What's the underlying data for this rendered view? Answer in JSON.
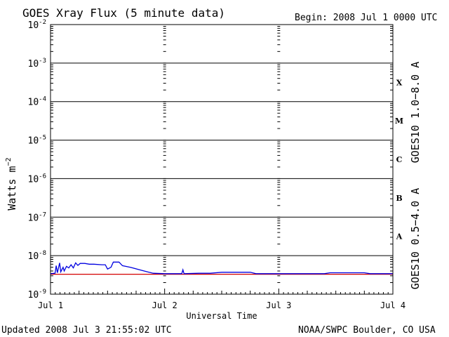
{
  "header": {
    "title": "GOES Xray Flux (5 minute data)",
    "begin": "Begin:  2008 Jul 1 0000 UTC"
  },
  "footer": {
    "updated": "Updated 2008 Jul  3 21:55:02 UTC",
    "source": "NOAA/SWPC Boulder, CO USA"
  },
  "colors": {
    "long_channel": "#d40000",
    "short_channel": "#0000e0",
    "frame": "#000000"
  },
  "chart_data": {
    "type": "line",
    "title": "GOES Xray Flux (5 minute data)",
    "xlabel": "Universal Time",
    "ylabel_base": "Watts m",
    "ylabel_exp": "−2",
    "y_scale": "log",
    "ylim": [
      1e-09,
      0.01
    ],
    "xlim": [
      0,
      3
    ],
    "x_unit": "days since 2008 Jul 1 0000 UTC",
    "x_ticks": [
      {
        "value": 0,
        "label": "Jul 1"
      },
      {
        "value": 1,
        "label": "Jul 2"
      },
      {
        "value": 2,
        "label": "Jul 3"
      },
      {
        "value": 3,
        "label": "Jul 4"
      }
    ],
    "y_ticks": [
      {
        "exp": -2,
        "label": "-2"
      },
      {
        "exp": -3,
        "label": "-3"
      },
      {
        "exp": -4,
        "label": "-4"
      },
      {
        "exp": -5,
        "label": "-5"
      },
      {
        "exp": -6,
        "label": "-6"
      },
      {
        "exp": -7,
        "label": "-7"
      },
      {
        "exp": -8,
        "label": "-8"
      },
      {
        "exp": -9,
        "label": "-9"
      }
    ],
    "flare_classes": [
      {
        "label": "X",
        "exp": -3.5
      },
      {
        "label": "M",
        "exp": -4.5
      },
      {
        "label": "C",
        "exp": -5.5
      },
      {
        "label": "B",
        "exp": -6.5
      },
      {
        "label": "A",
        "exp": -7.5
      }
    ],
    "grid": "horizontal lines at each decade; dashed vertical lines at day boundaries",
    "series": [
      {
        "name": "GOES10 1.0−8.0 A",
        "color": "#d40000",
        "points": [
          [
            0,
            3.3e-09
          ],
          [
            3,
            3.3e-09
          ]
        ]
      },
      {
        "name": "GOES10 0.5−4.0 A",
        "color": "#0000e0",
        "points": [
          [
            0,
            3.4e-09
          ],
          [
            0.04,
            3.5e-09
          ],
          [
            0.05,
            5.5e-09
          ],
          [
            0.06,
            3.6e-09
          ],
          [
            0.08,
            6.5e-09
          ],
          [
            0.09,
            3.8e-09
          ],
          [
            0.11,
            5e-09
          ],
          [
            0.12,
            4e-09
          ],
          [
            0.14,
            5.3e-09
          ],
          [
            0.16,
            4.8e-09
          ],
          [
            0.18,
            5.8e-09
          ],
          [
            0.2,
            4.8e-09
          ],
          [
            0.22,
            6.5e-09
          ],
          [
            0.24,
            5.6e-09
          ],
          [
            0.26,
            6.3e-09
          ],
          [
            0.3,
            6.3e-09
          ],
          [
            0.34,
            6e-09
          ],
          [
            0.38,
            6e-09
          ],
          [
            0.45,
            5.8e-09
          ],
          [
            0.48,
            5.8e-09
          ],
          [
            0.5,
            4.5e-09
          ],
          [
            0.53,
            5e-09
          ],
          [
            0.55,
            6.8e-09
          ],
          [
            0.6,
            6.8e-09
          ],
          [
            0.63,
            5.5e-09
          ],
          [
            0.7,
            5e-09
          ],
          [
            0.78,
            4.3e-09
          ],
          [
            0.85,
            3.8e-09
          ],
          [
            0.9,
            3.5e-09
          ],
          [
            1.0,
            3.4e-09
          ],
          [
            1.15,
            3.4e-09
          ],
          [
            1.16,
            4.3e-09
          ],
          [
            1.17,
            3.4e-09
          ],
          [
            1.3,
            3.5e-09
          ],
          [
            1.4,
            3.5e-09
          ],
          [
            1.5,
            3.7e-09
          ],
          [
            1.75,
            3.7e-09
          ],
          [
            1.8,
            3.4e-09
          ],
          [
            2.4,
            3.4e-09
          ],
          [
            2.45,
            3.6e-09
          ],
          [
            2.75,
            3.6e-09
          ],
          [
            2.8,
            3.4e-09
          ],
          [
            3.0,
            3.4e-09
          ]
        ]
      }
    ]
  }
}
